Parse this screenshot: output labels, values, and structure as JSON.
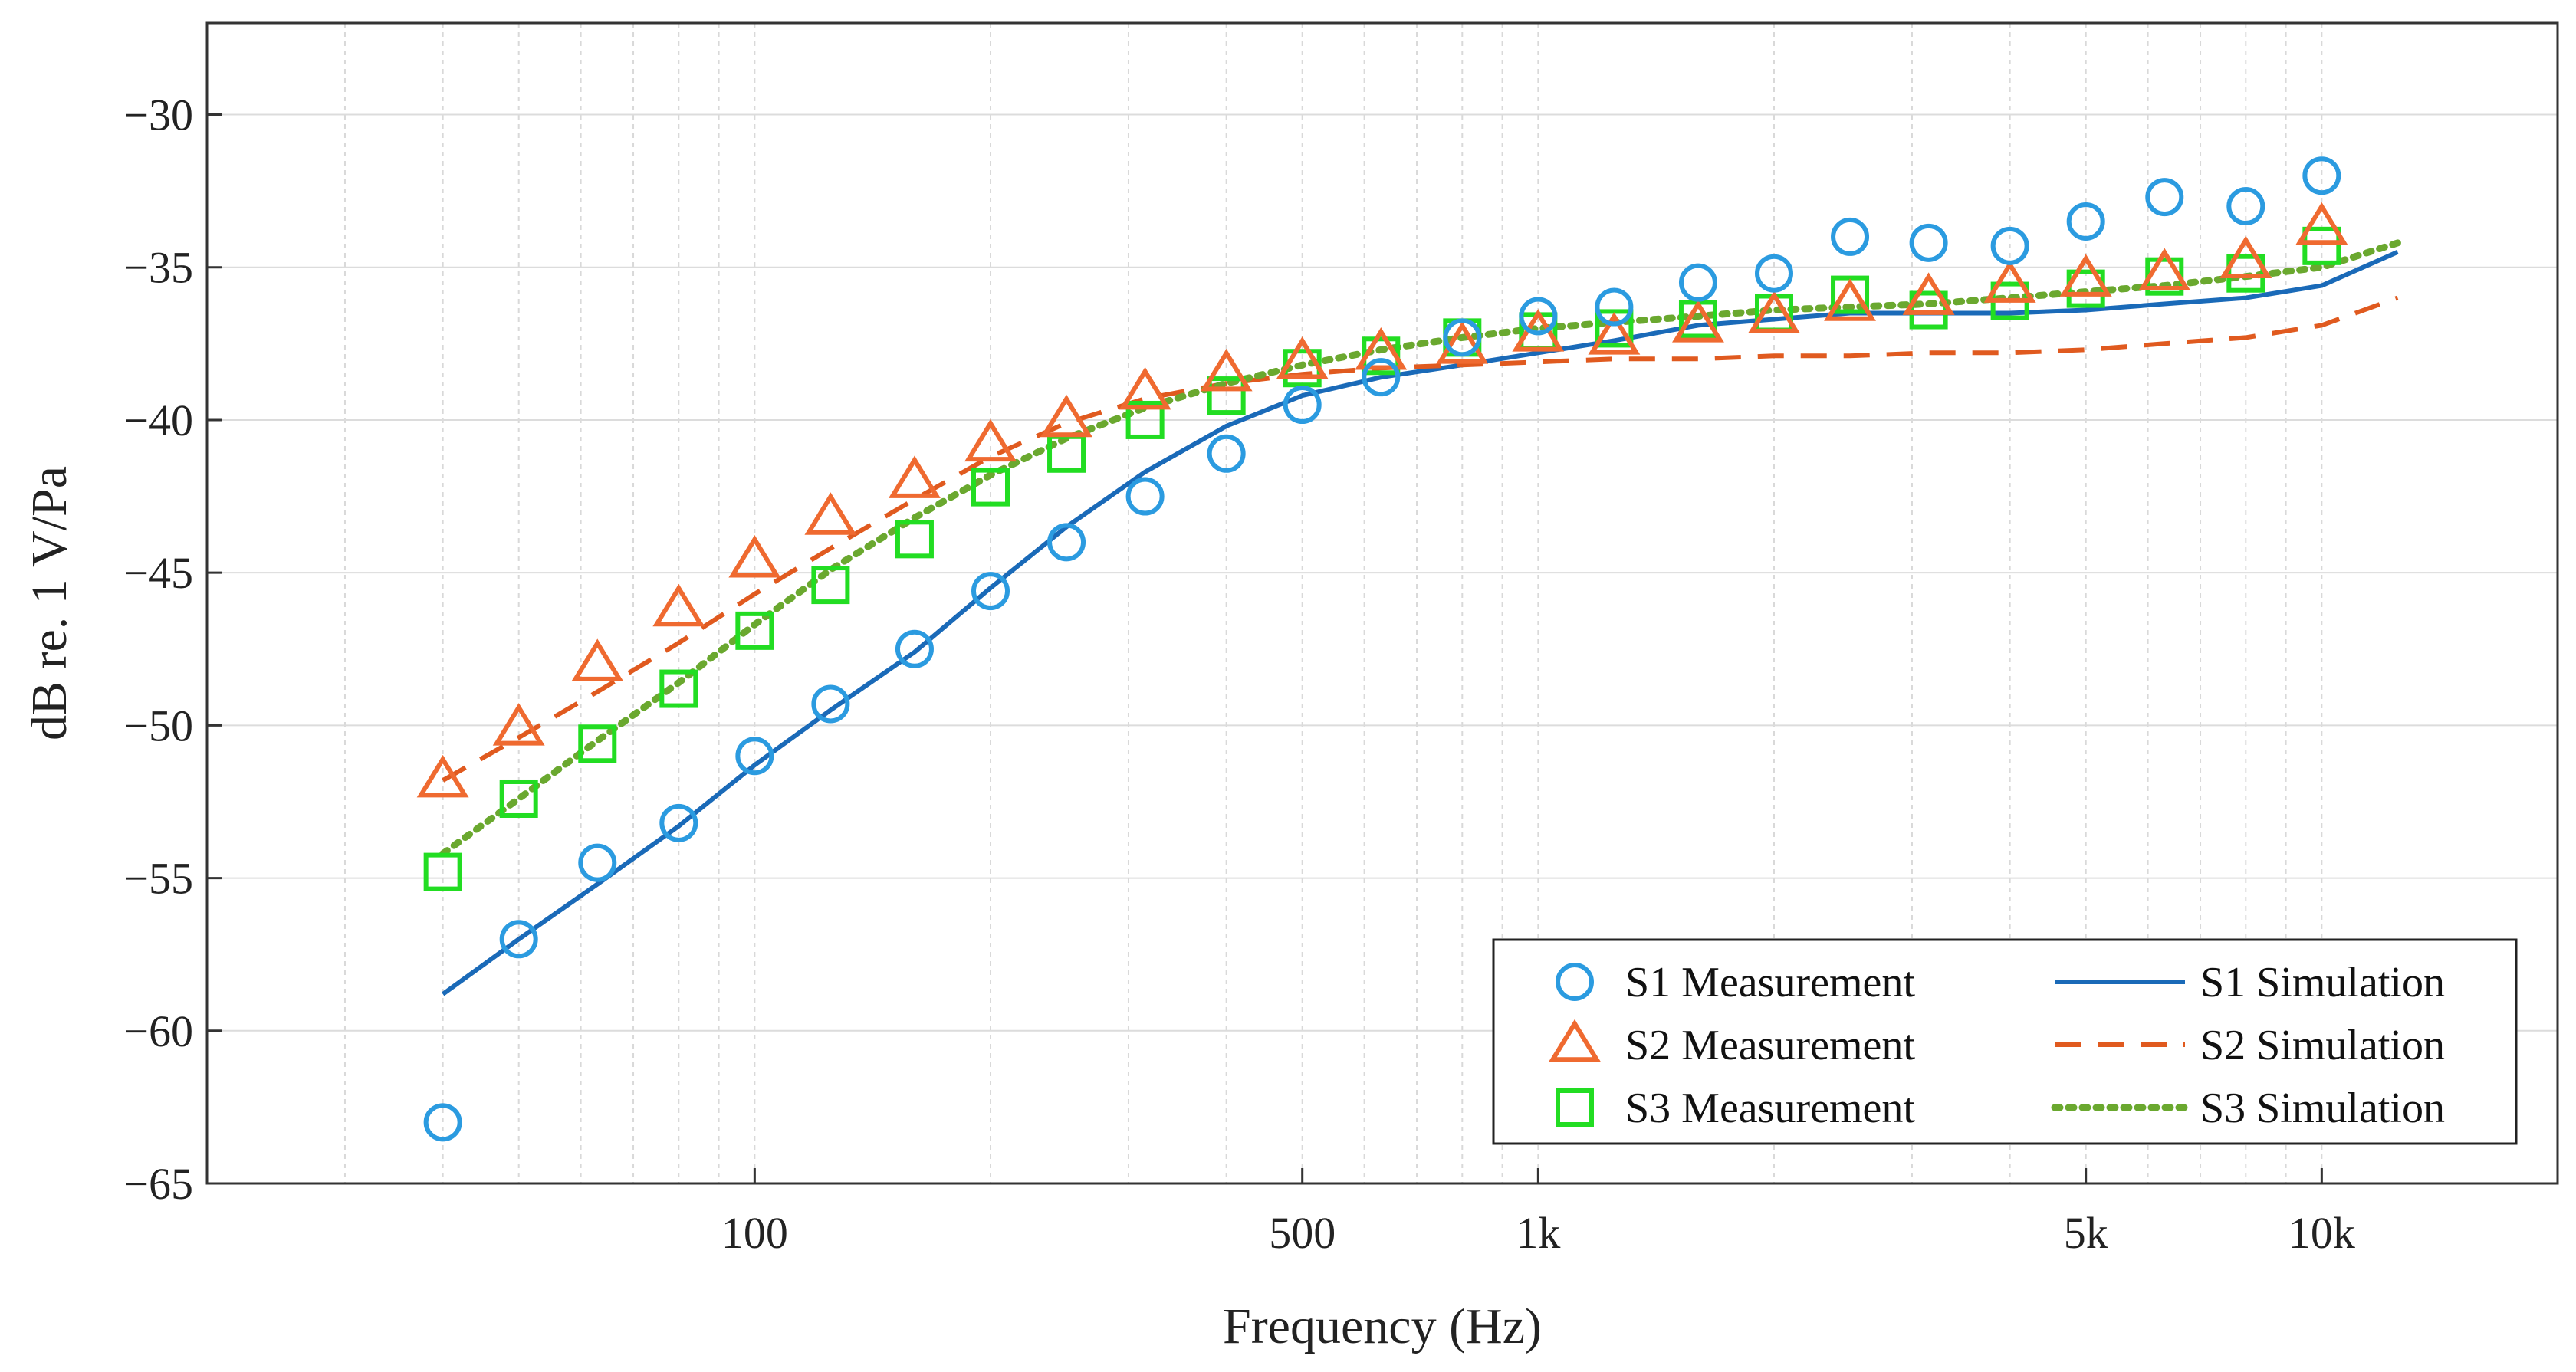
{
  "chart_data": {
    "type": "line",
    "title": "",
    "xlabel": "Frequency (Hz)",
    "ylabel": "dB re. 1 V/Pa",
    "xscale": "log",
    "xlim": [
      20,
      20000
    ],
    "ylim": [
      -65,
      -27
    ],
    "grid": true,
    "legend_position": "bottom-right",
    "x_ticks": [
      {
        "value": 100,
        "label": "100"
      },
      {
        "value": 500,
        "label": "500"
      },
      {
        "value": 1000,
        "label": "1k"
      },
      {
        "value": 5000,
        "label": "5k"
      },
      {
        "value": 10000,
        "label": "10k"
      }
    ],
    "y_ticks": [
      {
        "value": -30,
        "label": "−30"
      },
      {
        "value": -35,
        "label": "−35"
      },
      {
        "value": -40,
        "label": "−40"
      },
      {
        "value": -45,
        "label": "−45"
      },
      {
        "value": -50,
        "label": "−50"
      },
      {
        "value": -55,
        "label": "−55"
      },
      {
        "value": -60,
        "label": "−60"
      },
      {
        "value": -65,
        "label": "−65"
      }
    ],
    "series": [
      {
        "name": "S1 Measurement",
        "kind": "marker",
        "marker": "circle",
        "color": "#2b9be0",
        "x": [
          40,
          50,
          63,
          80,
          100,
          125,
          160,
          200,
          250,
          315,
          400,
          500,
          630,
          800,
          1000,
          1250,
          1600,
          2000,
          2500,
          3150,
          4000,
          5000,
          6300,
          8000,
          10000
        ],
        "y": [
          -63.0,
          -57.0,
          -54.5,
          -53.2,
          -51.0,
          -49.3,
          -47.5,
          -45.6,
          -44.0,
          -42.5,
          -41.1,
          -39.5,
          -38.6,
          -37.3,
          -36.6,
          -36.3,
          -35.5,
          -35.2,
          -34.0,
          -34.2,
          -34.3,
          -33.5,
          -32.7,
          -33.0,
          -32.0
        ]
      },
      {
        "name": "S2 Measurement",
        "kind": "marker",
        "marker": "triangle",
        "color": "#ef6a30",
        "x": [
          40,
          50,
          63,
          80,
          100,
          125,
          160,
          200,
          250,
          315,
          400,
          500,
          630,
          800,
          1000,
          1250,
          1600,
          2000,
          2500,
          3150,
          4000,
          5000,
          6300,
          8000,
          10000
        ],
        "y": [
          -51.8,
          -50.1,
          -48.0,
          -46.2,
          -44.6,
          -43.2,
          -42.0,
          -40.8,
          -40.0,
          -39.1,
          -38.5,
          -38.1,
          -37.8,
          -37.6,
          -37.2,
          -37.3,
          -36.9,
          -36.6,
          -36.2,
          -36.0,
          -35.6,
          -35.4,
          -35.2,
          -34.8,
          -33.7
        ]
      },
      {
        "name": "S3 Measurement",
        "kind": "marker",
        "marker": "square",
        "color": "#22dd22",
        "x": [
          40,
          50,
          63,
          80,
          100,
          125,
          160,
          200,
          250,
          315,
          400,
          500,
          630,
          800,
          1000,
          1250,
          1600,
          2000,
          2500,
          3150,
          4000,
          5000,
          6300,
          8000,
          10000
        ],
        "y": [
          -54.8,
          -52.4,
          -50.6,
          -48.8,
          -46.9,
          -45.4,
          -43.9,
          -42.2,
          -41.1,
          -40.0,
          -39.2,
          -38.3,
          -37.9,
          -37.3,
          -37.1,
          -37.0,
          -36.7,
          -36.5,
          -35.9,
          -36.4,
          -36.1,
          -35.7,
          -35.3,
          -35.2,
          -34.3
        ]
      },
      {
        "name": "S1 Simulation",
        "kind": "line",
        "dash": "solid",
        "color": "#1a6ab8",
        "x": [
          40,
          50,
          63,
          80,
          100,
          125,
          160,
          200,
          250,
          315,
          400,
          500,
          630,
          800,
          1000,
          1250,
          1600,
          2000,
          2500,
          3150,
          4000,
          5000,
          6300,
          8000,
          10000,
          12500
        ],
        "y": [
          -58.8,
          -57.0,
          -55.2,
          -53.3,
          -51.3,
          -49.5,
          -47.6,
          -45.5,
          -43.5,
          -41.7,
          -40.2,
          -39.2,
          -38.6,
          -38.2,
          -37.8,
          -37.4,
          -36.9,
          -36.7,
          -36.5,
          -36.5,
          -36.5,
          -36.4,
          -36.2,
          -36.0,
          -35.6,
          -34.5
        ]
      },
      {
        "name": "S2 Simulation",
        "kind": "line",
        "dash": "dashed",
        "color": "#e05a1f",
        "x": [
          40,
          50,
          63,
          80,
          100,
          125,
          160,
          200,
          250,
          315,
          400,
          500,
          630,
          800,
          1000,
          1250,
          1600,
          2000,
          2500,
          3150,
          4000,
          5000,
          6300,
          8000,
          10000,
          12500
        ],
        "y": [
          -51.8,
          -50.4,
          -48.9,
          -47.3,
          -45.7,
          -44.2,
          -42.6,
          -41.2,
          -40.1,
          -39.3,
          -38.8,
          -38.5,
          -38.3,
          -38.2,
          -38.1,
          -38.0,
          -38.0,
          -37.9,
          -37.9,
          -37.8,
          -37.8,
          -37.7,
          -37.5,
          -37.3,
          -36.9,
          -36.0
        ]
      },
      {
        "name": "S3 Simulation",
        "kind": "line",
        "dash": "dotted",
        "color": "#6aa82f",
        "x": [
          40,
          50,
          63,
          80,
          100,
          125,
          160,
          200,
          250,
          315,
          400,
          500,
          630,
          800,
          1000,
          1250,
          1600,
          2000,
          2500,
          3150,
          4000,
          5000,
          6300,
          8000,
          10000,
          12500
        ],
        "y": [
          -54.2,
          -52.4,
          -50.5,
          -48.6,
          -46.7,
          -44.9,
          -43.2,
          -41.8,
          -40.6,
          -39.6,
          -38.8,
          -38.2,
          -37.7,
          -37.3,
          -37.0,
          -36.8,
          -36.6,
          -36.4,
          -36.3,
          -36.2,
          -36.0,
          -35.8,
          -35.6,
          -35.3,
          -35.0,
          -34.2
        ]
      }
    ],
    "legend": {
      "rows": [
        {
          "measurement": "S1 Measurement",
          "simulation": "S1 Simulation"
        },
        {
          "measurement": "S2 Measurement",
          "simulation": "S2 Simulation"
        },
        {
          "measurement": "S3 Measurement",
          "simulation": "S3 Simulation"
        }
      ]
    }
  }
}
